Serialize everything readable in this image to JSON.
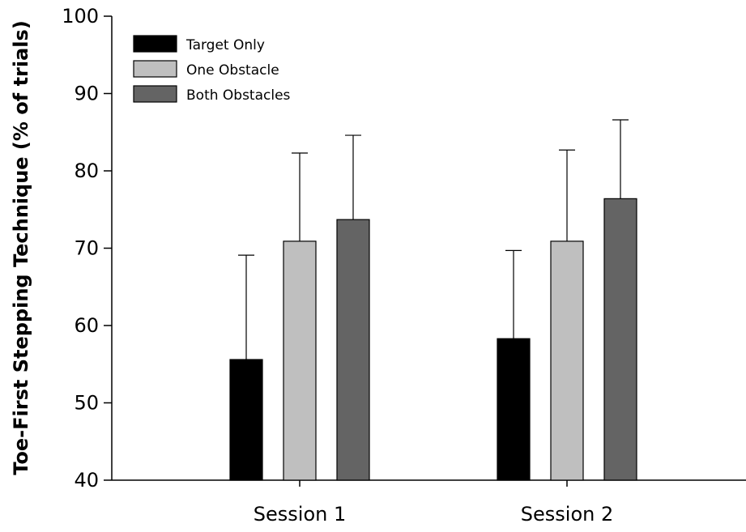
{
  "chart_data": {
    "type": "bar",
    "title": "",
    "xlabel": "",
    "ylabel": "Toe-First Stepping Technique (% of trials)",
    "ylim": [
      40,
      100
    ],
    "yticks": [
      40,
      50,
      60,
      70,
      80,
      90,
      100
    ],
    "categories": [
      "Session 1",
      "Session 2"
    ],
    "series": [
      {
        "name": "Target Only",
        "values": [
          55.6,
          58.3
        ],
        "errors": [
          13.5,
          11.4
        ],
        "color": "#000000"
      },
      {
        "name": "One Obstacle",
        "values": [
          70.9,
          70.9
        ],
        "errors": [
          11.4,
          11.8
        ],
        "color": "#bfbfbf"
      },
      {
        "name": "Both Obstacles",
        "values": [
          73.7,
          76.4
        ],
        "errors": [
          10.9,
          10.2
        ],
        "color": "#646464"
      }
    ],
    "error_bars": "upper",
    "grid": false,
    "legend_position": "top-left"
  }
}
